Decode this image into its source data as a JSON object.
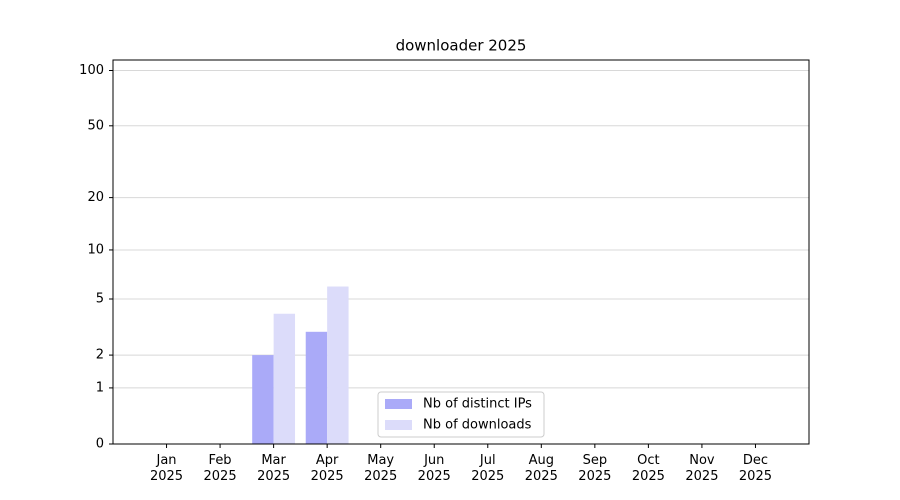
{
  "chart_data": {
    "type": "bar",
    "title": "downloader 2025",
    "categories": [
      "Jan 2025",
      "Feb 2025",
      "Mar 2025",
      "Apr 2025",
      "May 2025",
      "Jun 2025",
      "Jul 2025",
      "Aug 2025",
      "Sep 2025",
      "Oct 2025",
      "Nov 2025",
      "Dec 2025"
    ],
    "series": [
      {
        "name": "Nb of distinct IPs",
        "color": "#aaaaf8",
        "values": [
          0,
          0,
          2,
          3,
          0,
          0,
          0,
          0,
          0,
          0,
          0,
          0
        ]
      },
      {
        "name": "Nb of downloads",
        "color": "#dcdcfa",
        "values": [
          0,
          0,
          4,
          6,
          0,
          0,
          0,
          0,
          0,
          0,
          0,
          0
        ]
      }
    ],
    "y_scale": "log1p",
    "ylim": [
      0,
      114
    ],
    "yticks": [
      0,
      1,
      2,
      5,
      10,
      20,
      50,
      100
    ],
    "grid": true,
    "legend_position": "lower center"
  }
}
